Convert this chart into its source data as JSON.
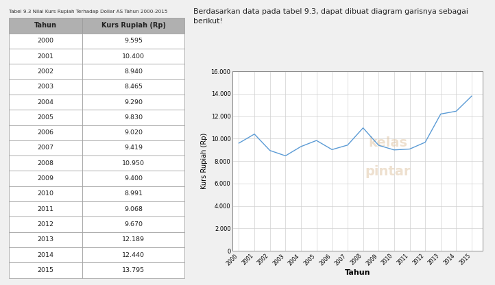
{
  "table_title": "Tabel 9.3 Nilai Kurs Rupiah Terhadap Dollar AS Tahun 2000-2015",
  "col_headers": [
    "Tahun",
    "Kurs Rupiah (Rp)"
  ],
  "years": [
    2000,
    2001,
    2002,
    2003,
    2004,
    2005,
    2006,
    2007,
    2008,
    2009,
    2010,
    2011,
    2012,
    2013,
    2014,
    2015
  ],
  "values": [
    9595,
    10400,
    8940,
    8465,
    9290,
    9830,
    9020,
    9419,
    10950,
    9400,
    8991,
    9068,
    9670,
    12189,
    12440,
    13795
  ],
  "table_values_display": [
    "9.595",
    "10.400",
    "8.940",
    "8.465",
    "9.290",
    "9.830",
    "9.020",
    "9.419",
    "10.950",
    "9.400",
    "8.991",
    "9.068",
    "9.670",
    "12.189",
    "12.440",
    "13.795"
  ],
  "chart_title": "Berdasarkan data pada tabel 9.3, dapat dibuat diagram garisnya sebagai\nberikut!",
  "xlabel": "Tahun",
  "ylabel": "Kurs Rupiah (Rp)",
  "ylim": [
    0,
    16000
  ],
  "yticks": [
    0,
    2000,
    4000,
    6000,
    8000,
    10000,
    12000,
    14000,
    16000
  ],
  "line_color": "#5b9bd5",
  "bg_color": "#f0f0f0",
  "panel_bg": "#ffffff",
  "header_bg": "#b0b0b0",
  "table_border_color": "#999999",
  "watermark_text1": "kelas",
  "watermark_text2": "pintar"
}
